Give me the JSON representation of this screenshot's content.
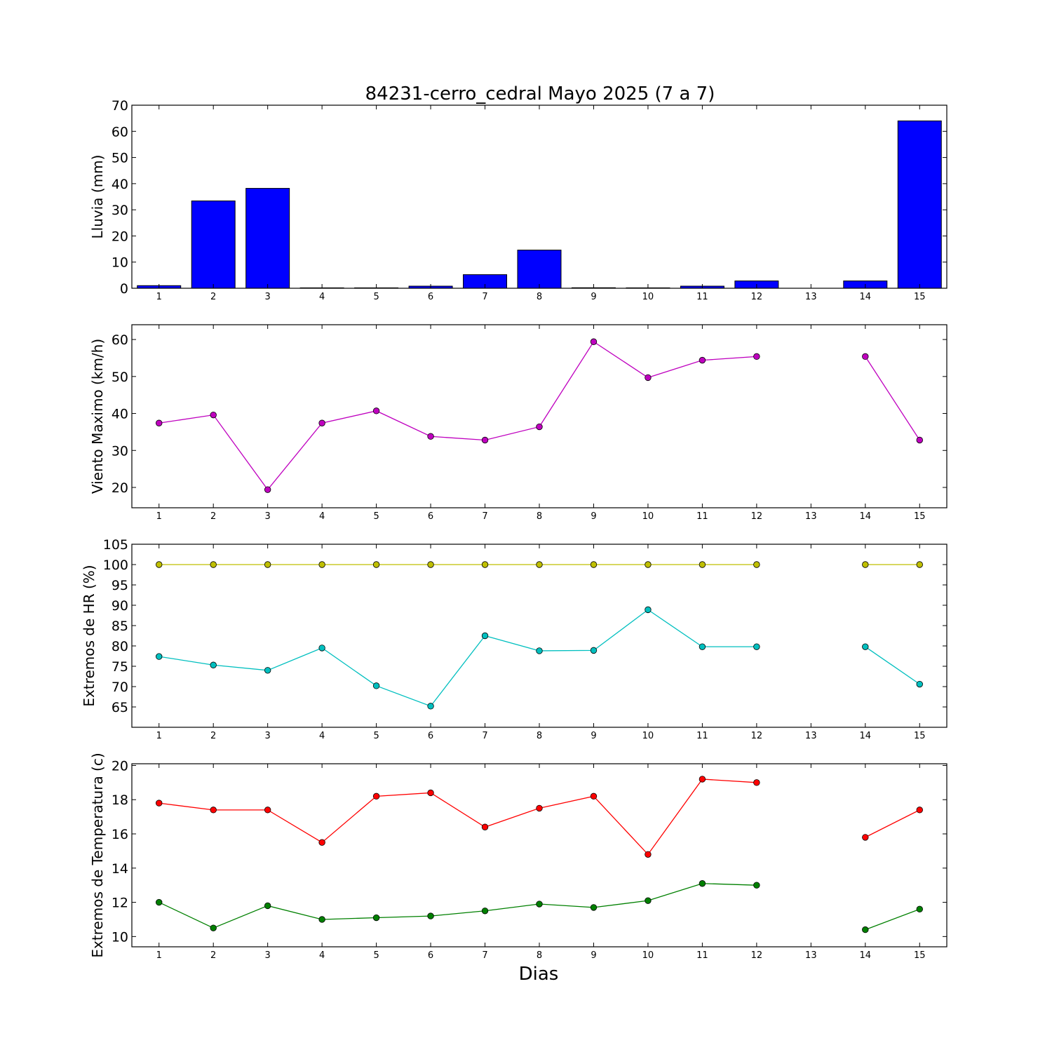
{
  "title": "84231-cerro_cedral Mayo 2025  (7 a 7)",
  "xlabel": "Dias",
  "chart_data": [
    {
      "type": "bar",
      "ylabel": "Lluvia (mm)",
      "ylim": [
        0,
        70
      ],
      "yticks": [
        0,
        10,
        20,
        30,
        40,
        50,
        60,
        70
      ],
      "xlim": [
        0.5,
        15.5
      ],
      "xticks": [
        1,
        2,
        3,
        4,
        5,
        6,
        7,
        8,
        9,
        10,
        11,
        12,
        13,
        14,
        15
      ],
      "categories": [
        1,
        2,
        3,
        4,
        5,
        6,
        7,
        8,
        9,
        10,
        11,
        12,
        13,
        14,
        15
      ],
      "series": [
        {
          "color": "#0000ff",
          "values": [
            1.0,
            33.4,
            38.2,
            0,
            0,
            0.8,
            5.2,
            14.6,
            0.2,
            0,
            0.8,
            2.8,
            null,
            2.8,
            64.0
          ]
        }
      ]
    },
    {
      "type": "line",
      "ylabel": "Viento Maximo (km/h)",
      "ylim": [
        14.5,
        64
      ],
      "yticks": [
        20,
        30,
        40,
        50,
        60
      ],
      "xlim": [
        0.5,
        15.5
      ],
      "xticks": [
        1,
        2,
        3,
        4,
        5,
        6,
        7,
        8,
        9,
        10,
        11,
        12,
        13,
        14,
        15
      ],
      "x": [
        1,
        2,
        3,
        4,
        5,
        6,
        7,
        8,
        9,
        10,
        11,
        12,
        13,
        14,
        15
      ],
      "series": [
        {
          "color": "#bf00bf",
          "values": [
            37.4,
            39.6,
            19.4,
            37.4,
            40.7,
            33.8,
            32.8,
            36.4,
            59.4,
            49.7,
            54.4,
            55.4,
            null,
            55.4,
            32.8
          ]
        }
      ]
    },
    {
      "type": "line",
      "ylabel": "Extremos de HR (%)",
      "ylim": [
        60,
        105
      ],
      "yticks": [
        65,
        70,
        75,
        80,
        85,
        90,
        95,
        100,
        105
      ],
      "xlim": [
        0.5,
        15.5
      ],
      "xticks": [
        1,
        2,
        3,
        4,
        5,
        6,
        7,
        8,
        9,
        10,
        11,
        12,
        13,
        14,
        15
      ],
      "x": [
        1,
        2,
        3,
        4,
        5,
        6,
        7,
        8,
        9,
        10,
        11,
        12,
        13,
        14,
        15
      ],
      "series": [
        {
          "color": "#bfbf00",
          "values": [
            100,
            100,
            100,
            100,
            100,
            100,
            100,
            100,
            100,
            100,
            100,
            100,
            null,
            100,
            100
          ]
        },
        {
          "color": "#00bfbf",
          "values": [
            77.4,
            75.3,
            74.0,
            79.5,
            70.2,
            65.2,
            82.5,
            78.8,
            78.9,
            88.9,
            79.8,
            79.8,
            null,
            79.8,
            70.6
          ]
        }
      ]
    },
    {
      "type": "line",
      "ylabel": "Extremos de Temperatura (c)",
      "ylim": [
        9.4,
        20.1
      ],
      "yticks": [
        10,
        12,
        14,
        16,
        18,
        20
      ],
      "xlim": [
        0.5,
        15.5
      ],
      "xticks": [
        1,
        2,
        3,
        4,
        5,
        6,
        7,
        8,
        9,
        10,
        11,
        12,
        13,
        14,
        15
      ],
      "x": [
        1,
        2,
        3,
        4,
        5,
        6,
        7,
        8,
        9,
        10,
        11,
        12,
        13,
        14,
        15
      ],
      "series": [
        {
          "color": "#ff0000",
          "values": [
            17.8,
            17.4,
            17.4,
            15.5,
            18.2,
            18.4,
            16.4,
            17.5,
            18.2,
            14.8,
            19.2,
            19.0,
            null,
            15.8,
            17.4
          ]
        },
        {
          "color": "#008000",
          "values": [
            12.0,
            10.5,
            11.8,
            11.0,
            11.1,
            11.2,
            11.5,
            11.9,
            11.7,
            12.1,
            13.1,
            13.0,
            null,
            10.4,
            11.6
          ]
        }
      ]
    }
  ]
}
